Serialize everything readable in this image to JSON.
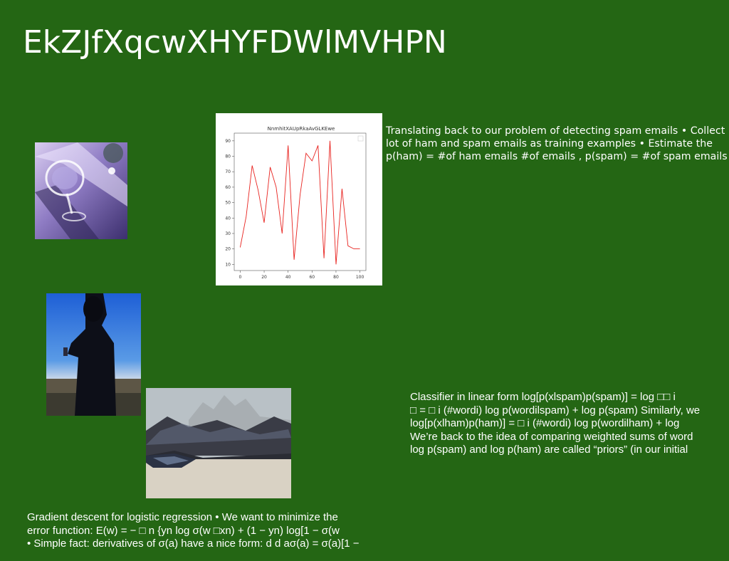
{
  "slide": {
    "title": "EkZJfXqcwXHYFDWlMVHPN",
    "background_color": "#246614",
    "text_color": "#ffffff"
  },
  "images": [
    {
      "name": "glassware-photo",
      "icon": "photo-glasses"
    },
    {
      "name": "person-phone-photo",
      "icon": "photo-person-phone"
    },
    {
      "name": "mountain-lake-photo",
      "icon": "photo-landscape"
    }
  ],
  "text_blocks": {
    "spam_intro": "Translating back to our problem of detecting spam emails • Collect\nlot of ham and spam emails as training examples • Estimate the\np(ham) = #of ham emails #of emails , p(spam) = #of spam emails",
    "classifier": "Classifier in linear form log[p(xlspam)p(spam)] = log □□ i\n□ = □ i (#wordi) log p(wordilspam) + log p(spam) Similarly, we\nlog[p(xlham)p(ham)] = □ i (#wordi) log p(wordilham) + log\nWe’re back to the idea of comparing weighted sums of word\nlog p(spam) and log p(ham) are called “priors” (in our initial",
    "gradient": "Gradient descent for logistic regression • We want to minimize the\nerror function: E(w) = − □ n {yn log σ(w □xn) + (1 − yn) log[1 − σ(w\n• Simple fact: derivatives of σ(a) have a nice form: d d aσ(a) = σ(a)[1 −"
  },
  "chart_data": {
    "type": "line",
    "title": "NnmhitXAUpRkaAvGLKEwe",
    "x": [
      0,
      5,
      10,
      15,
      20,
      25,
      30,
      35,
      40,
      45,
      50,
      55,
      60,
      65,
      70,
      75,
      80,
      85,
      90,
      95,
      100
    ],
    "series": [
      {
        "values": [
          21,
          41,
          74,
          58,
          37,
          73,
          60,
          30,
          87,
          13,
          55,
          82,
          77,
          87,
          14,
          90,
          10,
          59,
          22,
          20,
          20
        ],
        "color": "#e8231f"
      }
    ],
    "xticks": [
      0,
      20,
      40,
      60,
      80,
      100
    ],
    "yticks": [
      10,
      20,
      30,
      40,
      50,
      60,
      70,
      80,
      90
    ],
    "xlim": [
      -5,
      105
    ],
    "ylim": [
      6,
      95
    ],
    "grid": false,
    "legend": "top-right-empty"
  }
}
